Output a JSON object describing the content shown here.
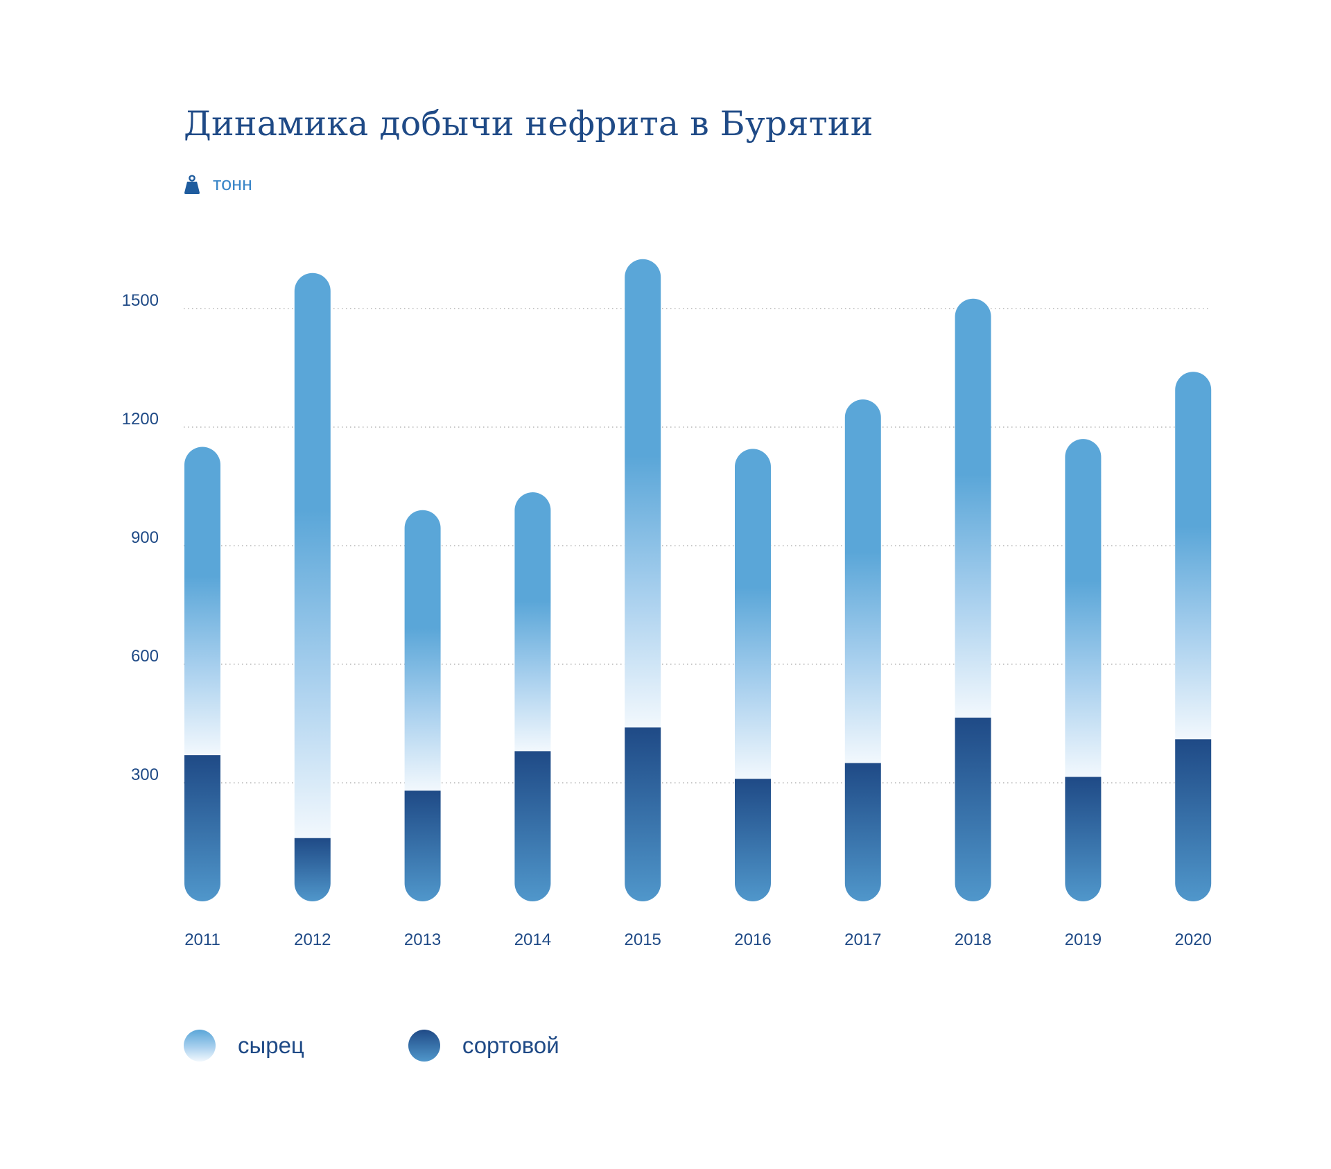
{
  "chart_data": {
    "type": "bar",
    "stacked": true,
    "title": "Динамика добычи нефрита в Бурятии",
    "unit_label": "тонн",
    "categories": [
      "2011",
      "2012",
      "2013",
      "2014",
      "2015",
      "2016",
      "2017",
      "2018",
      "2019",
      "2020"
    ],
    "series": [
      {
        "name": "сортовой",
        "values": [
          370,
          160,
          280,
          380,
          440,
          310,
          350,
          465,
          315,
          410
        ]
      },
      {
        "name": "сырец",
        "values": [
          780,
          1430,
          710,
          655,
          1185,
          835,
          920,
          1060,
          855,
          930
        ]
      }
    ],
    "totals": [
      1150,
      1590,
      990,
      1035,
      1625,
      1145,
      1270,
      1525,
      1170,
      1340
    ],
    "yticks": [
      300,
      600,
      900,
      1200,
      1500
    ],
    "ylim": [
      0,
      1500
    ],
    "grid": true,
    "legend_position": "bottom-left",
    "colors": {
      "raw_top": "#5aa6d8",
      "raw_mid": "#a9d0ee",
      "raw_bottom": "#f2f8fd",
      "sort_top": "#1f4a86",
      "sort_bottom": "#5097cb",
      "text_dark": "#1f4a86",
      "text_accent": "#3a86c8",
      "grid": "#b5b5b5"
    }
  }
}
